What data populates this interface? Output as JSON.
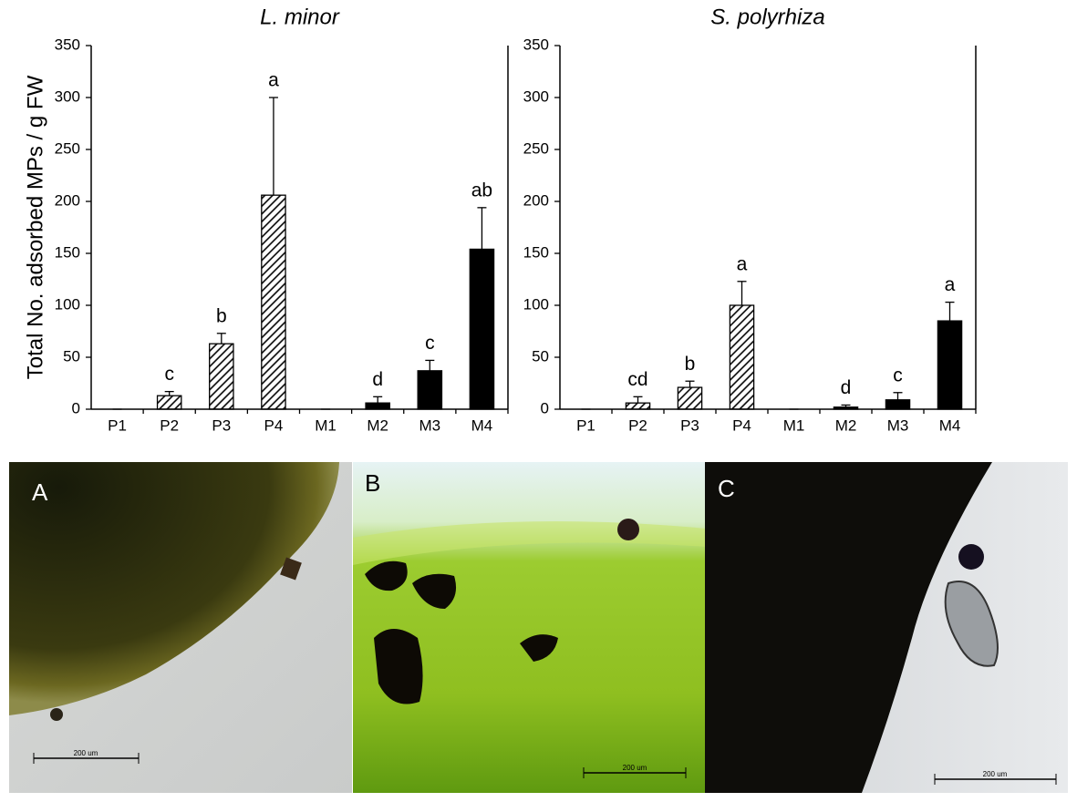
{
  "chart_data": [
    {
      "type": "bar",
      "title": "L. minor",
      "ylabel": "Total No. adsorbed MPs / g FW",
      "categories": [
        "P1",
        "P2",
        "P3",
        "P4",
        "M1",
        "M2",
        "M3",
        "M4"
      ],
      "values": [
        0,
        13,
        63,
        206,
        0,
        6,
        37,
        154
      ],
      "errors": [
        0,
        4,
        10,
        94,
        0,
        6,
        10,
        40
      ],
      "letters": [
        null,
        "c",
        "b",
        "a",
        null,
        "d",
        "c",
        "ab"
      ],
      "fills": [
        "hatch",
        "hatch",
        "hatch",
        "hatch",
        "solid",
        "solid",
        "solid",
        "solid"
      ],
      "color": "#000000",
      "ylim": [
        0,
        350
      ],
      "yticks": [
        0,
        50,
        100,
        150,
        200,
        250,
        300,
        350
      ],
      "grid": false
    },
    {
      "type": "bar",
      "title": "S. polyrhiza",
      "categories": [
        "P1",
        "P2",
        "P3",
        "P4",
        "M1",
        "M2",
        "M3",
        "M4"
      ],
      "values": [
        0,
        6,
        21,
        100,
        0,
        2,
        9,
        85
      ],
      "errors": [
        0,
        6,
        6,
        23,
        0,
        2,
        7,
        18
      ],
      "letters": [
        null,
        "cd",
        "b",
        "a",
        null,
        "d",
        "c",
        "a"
      ],
      "fills": [
        "hatch",
        "hatch",
        "hatch",
        "hatch",
        "solid",
        "solid",
        "solid",
        "solid"
      ],
      "color": "#000000",
      "ylim": [
        0,
        350
      ],
      "yticks": [
        0,
        50,
        100,
        150,
        200,
        250,
        300,
        350
      ],
      "grid": false
    }
  ],
  "panels": [
    {
      "label": "A",
      "scale": "200 um"
    },
    {
      "label": "B",
      "scale": "200 um"
    },
    {
      "label": "C",
      "scale": "200 um"
    }
  ]
}
